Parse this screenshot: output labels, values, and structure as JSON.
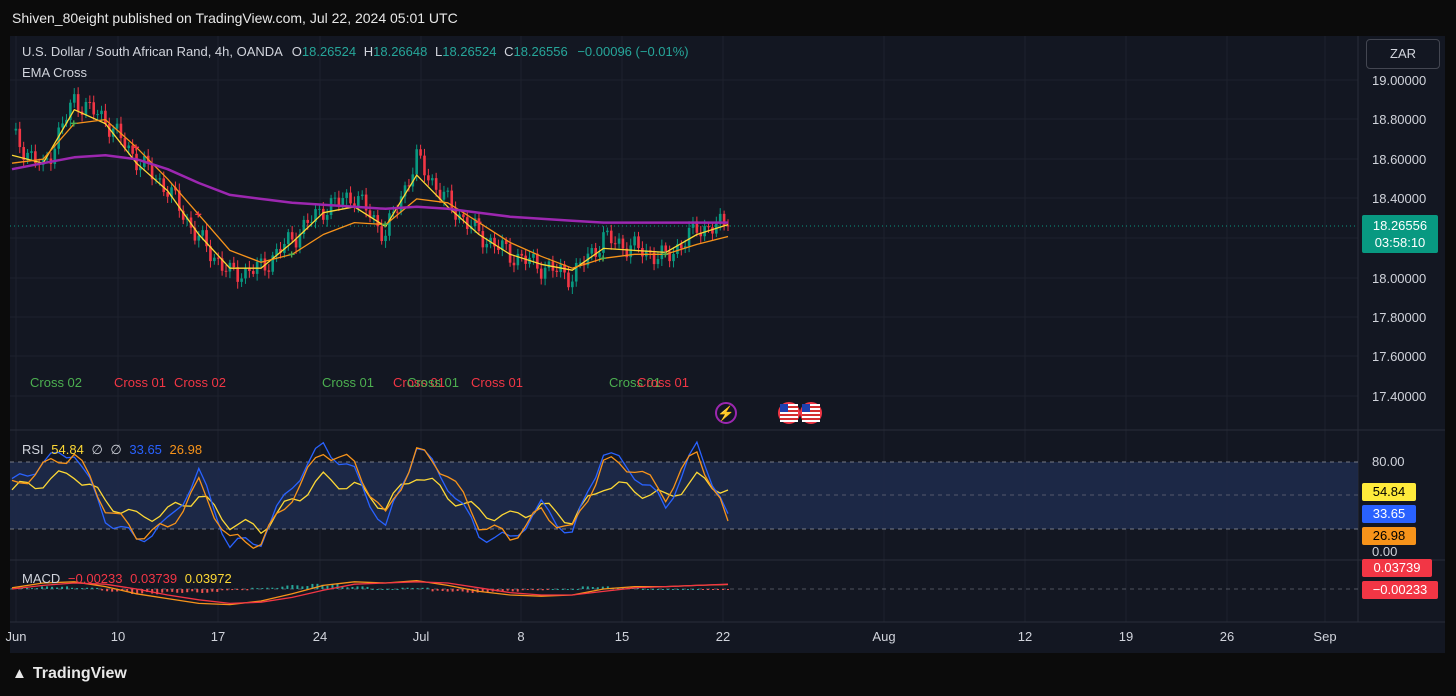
{
  "header": {
    "publisher": "Shiven_80eight published on TradingView.com, Jul 22, 2024 05:01 UTC"
  },
  "legend": {
    "symbol": "U.S. Dollar / South African Rand, 4h, OANDA",
    "o_label": "O",
    "o": "18.26524",
    "h_label": "H",
    "h": "18.26648",
    "l_label": "L",
    "l": "18.26524",
    "c_label": "C",
    "c": "18.26556",
    "change": "−0.00096 (−0.01%)",
    "indicator": "EMA Cross"
  },
  "currency_button": "ZAR",
  "price_axis": [
    "19.00000",
    "18.80000",
    "18.60000",
    "18.40000",
    "18.00000",
    "17.80000",
    "17.60000",
    "17.40000"
  ],
  "last_price": {
    "value": "18.26556",
    "countdown": "03:58:10",
    "color": "#089981"
  },
  "cross_labels": [
    {
      "text": "Cross 02",
      "color": "#4caf50"
    },
    {
      "text": "Cross 01",
      "color": "#f23645"
    },
    {
      "text": "Cross 02",
      "color": "#f23645"
    },
    {
      "text": "Cross 01",
      "color": "#4caf50"
    },
    {
      "text": "Cross 01",
      "color": "#f23645"
    },
    {
      "text": "Cross 01",
      "color": "#4caf50"
    },
    {
      "text": "Cross 01",
      "color": "#f23645"
    },
    {
      "text": "Cross 01",
      "color": "#4caf50"
    },
    {
      "text": "Cross 01",
      "color": "#f23645"
    }
  ],
  "rsi": {
    "label": "RSI",
    "v1": "54.84",
    "v2": "∅",
    "v3": "∅",
    "v4": "33.65",
    "v5": "26.98",
    "axis": [
      "80.00",
      "0.00"
    ],
    "badges": [
      "54.84",
      "33.65",
      "26.98"
    ]
  },
  "macd": {
    "label": "MACD",
    "v1": "−0.00233",
    "v2": "0.03739",
    "v3": "0.03972",
    "badges": [
      "0.03739",
      "−0.00233"
    ]
  },
  "time_axis": [
    "Jun",
    "10",
    "17",
    "24",
    "Jul",
    "8",
    "15",
    "22",
    "Aug",
    "12",
    "19",
    "26",
    "Sep"
  ],
  "footer": {
    "brand": "TradingView",
    "brand_icon": "tradingview-logo-icon"
  },
  "events": {
    "lightning_icon": "lightning-icon",
    "flag_icon": "us-flag-icon"
  },
  "chart_data": [
    {
      "type": "candlestick",
      "title": "U.S. Dollar / South African Rand, 4h, OANDA",
      "x": [
        "Jun 6",
        "Jun 7",
        "Jun 10",
        "Jun 12",
        "Jun 14",
        "Jun 17",
        "Jun 19",
        "Jun 21",
        "Jun 24",
        "Jun 26",
        "Jun 28",
        "Jul 1",
        "Jul 2",
        "Jul 3",
        "Jul 5",
        "Jul 8",
        "Jul 10",
        "Jul 12",
        "Jul 15",
        "Jul 16",
        "Jul 17",
        "Jul 18",
        "Jul 19",
        "Jul 22"
      ],
      "close": [
        18.72,
        18.55,
        18.9,
        18.8,
        18.6,
        18.45,
        18.2,
        18.02,
        18.05,
        18.2,
        18.35,
        18.42,
        18.22,
        18.6,
        18.38,
        18.22,
        18.12,
        18.06,
        18.01,
        18.2,
        18.15,
        18.1,
        18.25,
        18.26556
      ],
      "series": [
        {
          "name": "EMA fast",
          "color": "#fdd835",
          "values": [
            18.62,
            18.58,
            18.85,
            18.78,
            18.58,
            18.44,
            18.22,
            18.05,
            18.05,
            18.18,
            18.33,
            18.36,
            18.26,
            18.52,
            18.36,
            18.22,
            18.12,
            18.07,
            18.04,
            18.15,
            18.14,
            18.13,
            18.22,
            18.27
          ]
        },
        {
          "name": "EMA slow",
          "color": "#f7931a",
          "values": [
            18.58,
            18.6,
            18.78,
            18.8,
            18.66,
            18.5,
            18.32,
            18.14,
            18.08,
            18.12,
            18.22,
            18.28,
            18.27,
            18.4,
            18.38,
            18.28,
            18.18,
            18.11,
            18.05,
            18.1,
            18.12,
            18.12,
            18.17,
            18.21
          ]
        },
        {
          "name": "EMA long",
          "color": "#9c27b0",
          "values": [
            18.55,
            18.58,
            18.61,
            18.62,
            18.6,
            18.55,
            18.48,
            18.42,
            18.4,
            18.38,
            18.37,
            18.36,
            18.35,
            18.36,
            18.35,
            18.33,
            18.31,
            18.3,
            18.29,
            18.28,
            18.28,
            18.28,
            18.28,
            18.28
          ]
        }
      ],
      "ylim": [
        17.35,
        19.1
      ]
    },
    {
      "type": "line",
      "title": "RSI",
      "series": [
        {
          "name": "RSI",
          "color": "#fdd835",
          "values": [
            55,
            62,
            70,
            45,
            30,
            35,
            50,
            25,
            20,
            45,
            65,
            58,
            40,
            70,
            50,
            35,
            30,
            40,
            28,
            60,
            55,
            48,
            65,
            54.84
          ]
        },
        {
          "name": "RSI K",
          "color": "#2962ff",
          "values": [
            60,
            80,
            90,
            30,
            10,
            25,
            70,
            5,
            10,
            60,
            95,
            70,
            20,
            95,
            60,
            15,
            10,
            40,
            15,
            90,
            70,
            40,
            95,
            33.65
          ]
        },
        {
          "name": "RSI D",
          "color": "#f7931a",
          "values": [
            58,
            75,
            88,
            40,
            15,
            20,
            60,
            10,
            8,
            50,
            90,
            78,
            30,
            90,
            70,
            25,
            12,
            35,
            18,
            80,
            75,
            50,
            90,
            26.98
          ]
        }
      ],
      "ylim": [
        0,
        100
      ]
    },
    {
      "type": "line",
      "title": "MACD",
      "series": [
        {
          "name": "MACD",
          "color": "#f7931a",
          "values": [
            0.01,
            0.05,
            0.06,
            0.02,
            -0.04,
            -0.08,
            -0.12,
            -0.13,
            -0.1,
            -0.04,
            0.03,
            0.06,
            0.05,
            0.07,
            0.03,
            -0.02,
            -0.05,
            -0.06,
            -0.05,
            0.0,
            0.02,
            0.02,
            0.03,
            0.03739
          ]
        },
        {
          "name": "Signal",
          "color": "#f23645",
          "values": [
            0.0,
            0.03,
            0.05,
            0.04,
            0.0,
            -0.05,
            -0.09,
            -0.12,
            -0.11,
            -0.07,
            -0.01,
            0.04,
            0.05,
            0.06,
            0.05,
            0.01,
            -0.03,
            -0.05,
            -0.05,
            -0.02,
            0.01,
            0.02,
            0.03,
            0.03972
          ]
        }
      ],
      "histogram": [
        0.01,
        0.02,
        0.01,
        -0.02,
        -0.04,
        -0.03,
        -0.03,
        -0.01,
        0.01,
        0.03,
        0.04,
        0.02,
        0.0,
        0.01,
        -0.02,
        -0.03,
        -0.02,
        -0.01,
        0.0,
        0.02,
        0.01,
        0.0,
        0.0,
        -0.00233
      ]
    }
  ]
}
